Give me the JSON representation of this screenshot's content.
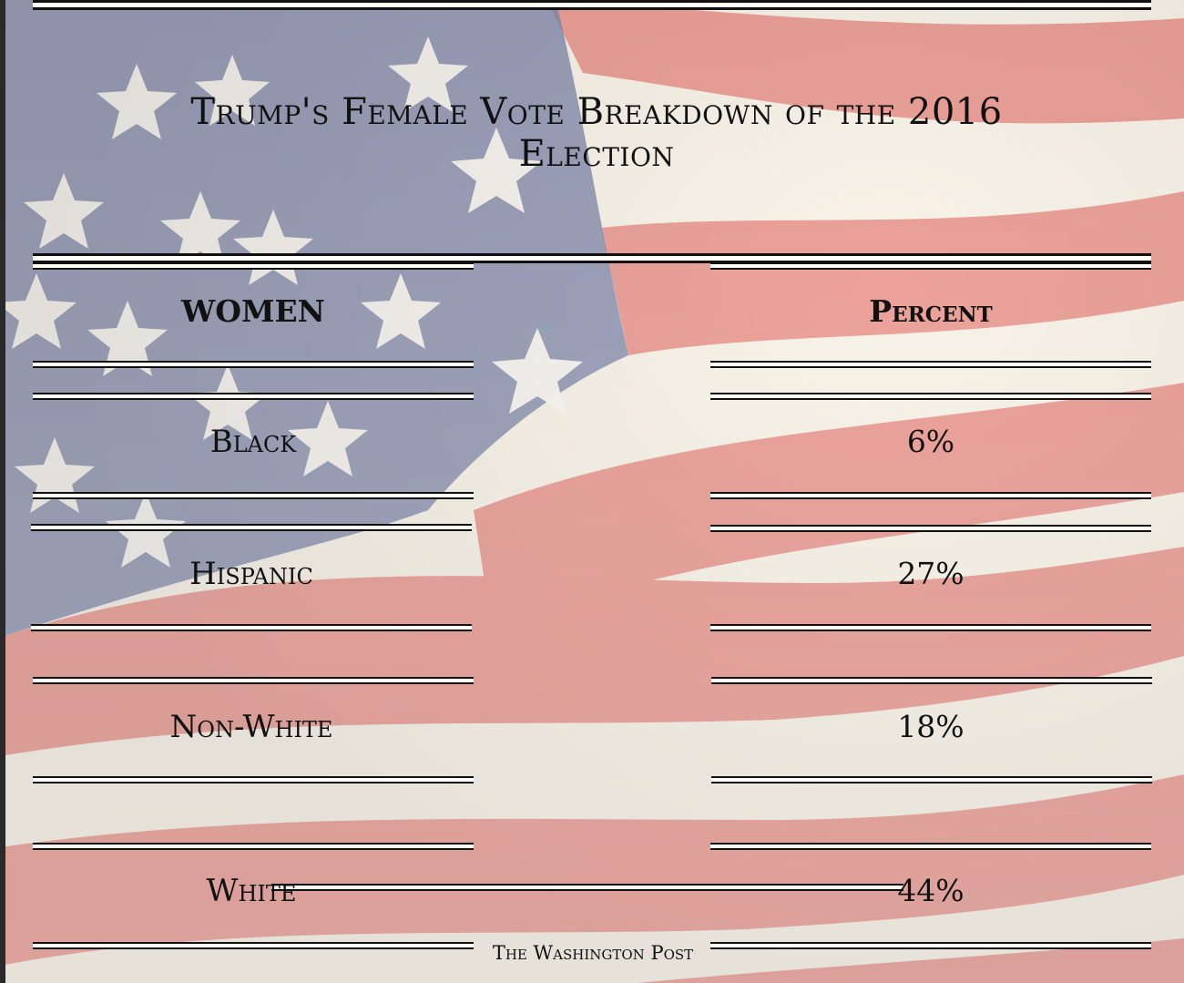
{
  "chart_data": {
    "type": "table",
    "title": "Trump's Female Vote Breakdown of the 2016 Election",
    "columns": [
      "WOMEN",
      "Percent"
    ],
    "rows": [
      {
        "group": "Black",
        "percent": "6%",
        "value": 6
      },
      {
        "group": "Hispanic",
        "percent": "27%",
        "value": 27
      },
      {
        "group": "Non-White",
        "percent": "18%",
        "value": 18
      },
      {
        "group": "White",
        "percent": "44%",
        "value": 44
      }
    ],
    "source": "The Washington Post"
  },
  "background": "american-flag",
  "colors": {
    "flag_red": "#d9473f",
    "flag_blue": "#3b4a7e",
    "flag_white": "#fbf7ee",
    "rule": "#111111"
  }
}
